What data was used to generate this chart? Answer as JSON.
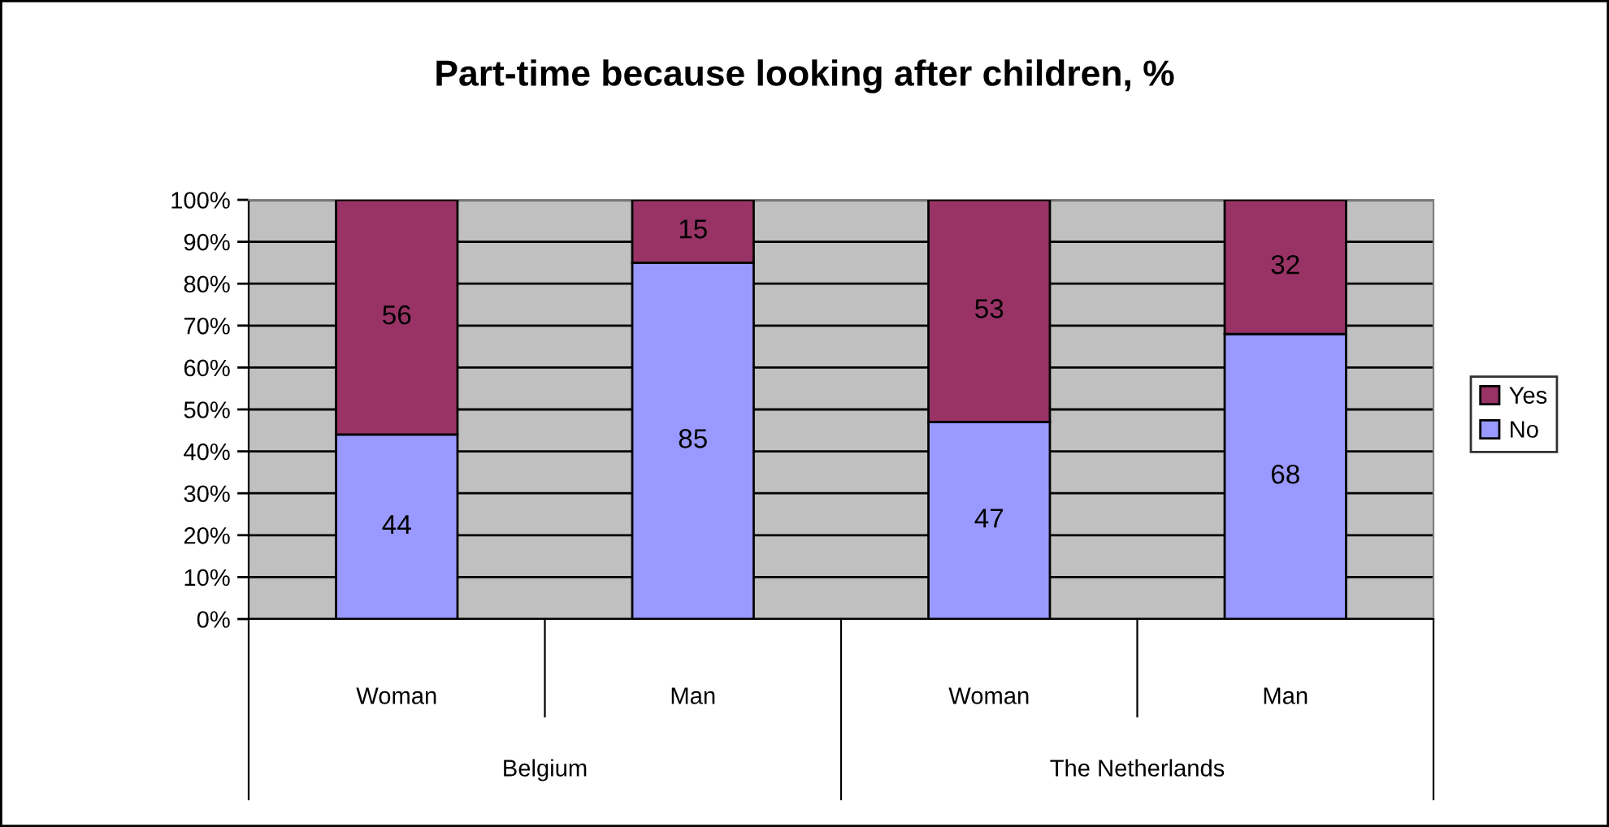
{
  "chart_data": {
    "type": "bar",
    "stacked": true,
    "title": "Part-time because looking after children, %",
    "categories": [
      "Woman",
      "Man",
      "Woman",
      "Man"
    ],
    "series": [
      {
        "name": "No",
        "color": "#9999ff",
        "values": [
          44,
          85,
          47,
          68
        ]
      },
      {
        "name": "Yes",
        "color": "#993366",
        "values": [
          56,
          15,
          53,
          32
        ]
      }
    ],
    "ylim": [
      0,
      100
    ],
    "yticks": [
      {
        "value": 0,
        "label": "0%"
      },
      {
        "value": 10,
        "label": "10%"
      },
      {
        "value": 20,
        "label": "20%"
      },
      {
        "value": 30,
        "label": "30%"
      },
      {
        "value": 40,
        "label": "40%"
      },
      {
        "value": 50,
        "label": "50%"
      },
      {
        "value": 60,
        "label": "60%"
      },
      {
        "value": 70,
        "label": "70%"
      },
      {
        "value": 80,
        "label": "80%"
      },
      {
        "value": 90,
        "label": "90%"
      },
      {
        "value": 100,
        "label": "100%"
      }
    ],
    "grid": "y",
    "legend": "right",
    "data_labels": true,
    "annotations": [
      "Belgium",
      "The Netherlands"
    ]
  }
}
